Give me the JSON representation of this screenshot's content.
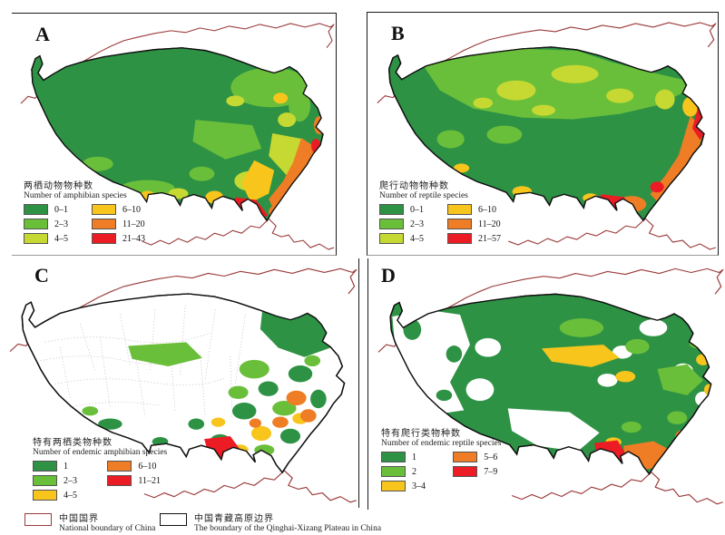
{
  "colors": {
    "class_green_dark": "#2e9245",
    "class_green": "#6abf3a",
    "class_yellow_green": "#c6d832",
    "class_yellow": "#f8c51d",
    "class_orange": "#ef7d25",
    "class_red": "#ec1c24",
    "national_boundary_line": "#9b3b3b",
    "plateau_outline": "#111111"
  },
  "panels": [
    {
      "label": "A",
      "title_zh": "两栖动物物种数",
      "title_en": "Number of amphibian species",
      "legend": [
        {
          "label": "0–1",
          "color": "#2e9245"
        },
        {
          "label": "2–3",
          "color": "#6abf3a"
        },
        {
          "label": "4–5",
          "color": "#c6d832"
        },
        {
          "label": "6–10",
          "color": "#f8c51d"
        },
        {
          "label": "11–20",
          "color": "#ef7d25"
        },
        {
          "label": "21–43",
          "color": "#ec1c24"
        }
      ]
    },
    {
      "label": "B",
      "title_zh": "爬行动物物种数",
      "title_en": "Number of reptile species",
      "legend": [
        {
          "label": "0–1",
          "color": "#2e9245"
        },
        {
          "label": "2–3",
          "color": "#6abf3a"
        },
        {
          "label": "4–5",
          "color": "#c6d832"
        },
        {
          "label": "6–10",
          "color": "#f8c51d"
        },
        {
          "label": "11–20",
          "color": "#ef7d25"
        },
        {
          "label": "21–57",
          "color": "#ec1c24"
        }
      ]
    },
    {
      "label": "C",
      "title_zh": "特有两栖类物种数",
      "title_en": "Number of endemic amphibian species",
      "legend": [
        {
          "label": "1",
          "color": "#2e9245"
        },
        {
          "label": "2–3",
          "color": "#6abf3a"
        },
        {
          "label": "4–5",
          "color": "#f8c51d"
        },
        {
          "label": "6–10",
          "color": "#ef7d25"
        },
        {
          "label": "11–21",
          "color": "#ec1c24"
        }
      ]
    },
    {
      "label": "D",
      "title_zh": "特有爬行类物种数",
      "title_en": "Number of endemic reptile species",
      "legend": [
        {
          "label": "1",
          "color": "#2e9245"
        },
        {
          "label": "2",
          "color": "#6abf3a"
        },
        {
          "label": "3–4",
          "color": "#f8c51d"
        },
        {
          "label": "5–6",
          "color": "#ef7d25"
        },
        {
          "label": "7–9",
          "color": "#ec1c24"
        }
      ]
    }
  ],
  "footer": {
    "items": [
      {
        "label_zh": "中国国界",
        "label_en": "National boundary of China",
        "swatch_border": "#9b3b3b"
      },
      {
        "label_zh": "中国青藏高原边界",
        "label_en": "The boundary of the Qinghai-Xizang Plateau in China",
        "swatch_border": "#111111"
      }
    ]
  }
}
